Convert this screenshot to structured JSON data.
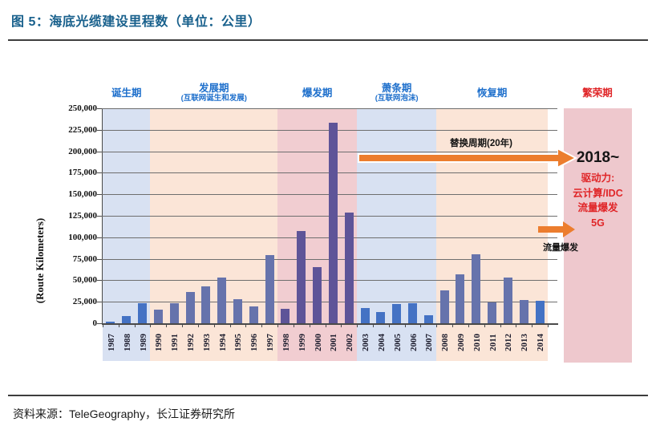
{
  "header": {
    "title": "图 5：海底光缆建设里程数（单位：公里）"
  },
  "footer": {
    "source": "资料来源：TeleGeography，长江证券研究所"
  },
  "chart_data": {
    "type": "bar",
    "title": "海底光缆建设里程数（单位：公里）",
    "xlabel": "",
    "ylabel": "(Route Kilometers)",
    "ylim": [
      0,
      250000
    ],
    "ytick_interval": 25000,
    "ytick_labels": [
      "0",
      "25,000",
      "50,000",
      "75,000",
      "100,000",
      "125,000",
      "150,000",
      "175,000",
      "200,000",
      "225,000",
      "250,000"
    ],
    "grid": true,
    "legend": "none",
    "categories": [
      "1987",
      "1988",
      "1989",
      "1990",
      "1991",
      "1992",
      "1993",
      "1994",
      "1995",
      "1996",
      "1997",
      "1998",
      "1999",
      "2000",
      "2001",
      "2002",
      "2003",
      "2004",
      "2005",
      "2006",
      "2007",
      "2008",
      "2009",
      "2010",
      "2011",
      "2012",
      "2013",
      "2014"
    ],
    "values": [
      2000,
      8000,
      23000,
      16000,
      23000,
      36000,
      43000,
      53000,
      28000,
      20000,
      79000,
      17000,
      107000,
      65000,
      233000,
      129000,
      18000,
      13000,
      22000,
      23000,
      9000,
      38000,
      57000,
      80000,
      24000,
      53000,
      27000,
      26000
    ],
    "periods": [
      {
        "label": "诞生期",
        "sublabel": "",
        "start_year": 1987,
        "end_year": 1989,
        "band_color": "#D8E1F2",
        "bar_color": "#4472C4",
        "label_color": "#1F70CC"
      },
      {
        "label": "发展期",
        "sublabel": "(互联网诞生和发展)",
        "start_year": 1990,
        "end_year": 1997,
        "band_color": "#FBE5D7",
        "bar_color": "#6673AC",
        "label_color": "#1F70CC"
      },
      {
        "label": "爆发期",
        "sublabel": "",
        "start_year": 1998,
        "end_year": 2002,
        "band_color": "#F1CDD1",
        "bar_color": "#5E5498",
        "label_color": "#1F70CC"
      },
      {
        "label": "萧条期",
        "sublabel": "(互联网泡沫)",
        "start_year": 2003,
        "end_year": 2007,
        "band_color": "#D8E1F2",
        "bar_color": "#4472C4",
        "label_color": "#1F70CC"
      },
      {
        "label": "恢复期",
        "sublabel": "",
        "start_year": 2008,
        "end_year": 2014,
        "band_color": "#FBE5D7",
        "bar_color": "#6673AC",
        "label_color": "#1F70CC"
      }
    ],
    "bar_color_overrides": {
      "2014": "#4472C4"
    },
    "annotations": {
      "replacement_cycle": {
        "label": "替换周期(20年)"
      },
      "traffic_burst": {
        "label": "流量爆发"
      },
      "boom": {
        "label": "繁荣期",
        "label_color": "#E02628",
        "panel_color": "#EEC8CD",
        "year_label": "2018~",
        "driver_lines": [
          "驱动力:",
          "云计算/IDC",
          "流量爆发",
          "5G"
        ],
        "driver_color": "#E02628"
      },
      "arrow_color": "#EC7D2E"
    }
  }
}
